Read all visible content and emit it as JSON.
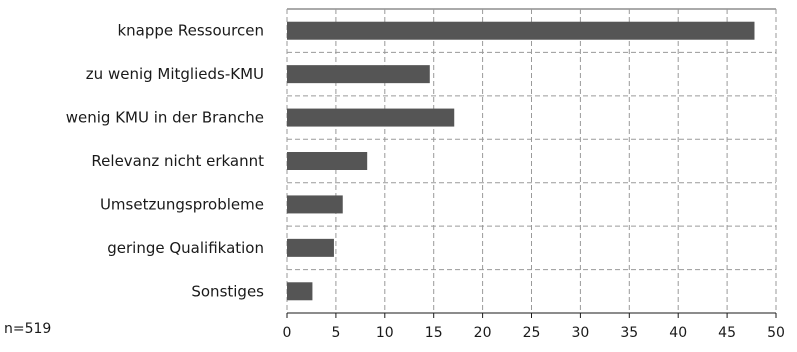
{
  "chart_data": {
    "type": "bar",
    "orientation": "horizontal",
    "categories": [
      "knappe Ressourcen",
      "zu wenig Mitglieds-KMU",
      "wenig KMU in der Branche",
      "Relevanz nicht erkannt",
      "Umsetzungsprobleme",
      "geringe Qualifikation",
      "Sonstiges"
    ],
    "values": [
      47.8,
      14.6,
      17.1,
      8.2,
      5.7,
      4.8,
      2.6
    ],
    "xlim": [
      0,
      50
    ],
    "xticks": [
      "0",
      "5",
      "10",
      "15",
      "20",
      "25",
      "30",
      "35",
      "40",
      "45",
      "50"
    ],
    "grid": "dashed",
    "bar_color": "#555555",
    "note": "n=519"
  }
}
